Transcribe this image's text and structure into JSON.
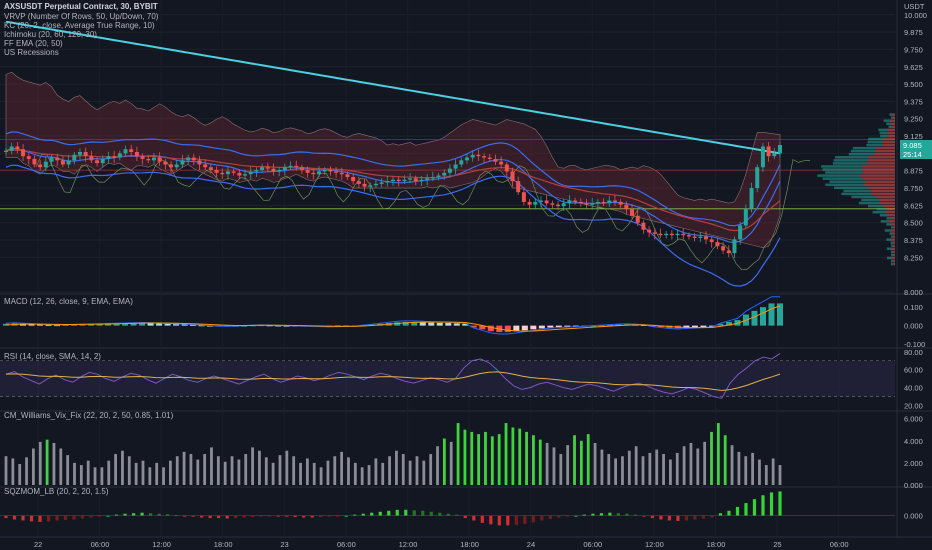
{
  "chart_title": "AXSUSDT Perpetual Contract, 30, BYBIT",
  "currency": "USDT",
  "indicators_main": [
    "VRVP (Number Of Rows, 50, Up/Down, 70)",
    "KC (20, 2, close, Average True Range, 10)",
    "Ichimoku (20, 60, 120, 30)",
    "FF EMA (20, 50)",
    "US Recessions"
  ],
  "price_badges": {
    "last": "9.085",
    "countdown": "25:14"
  },
  "macd_label": "MACD (12, 26, close, 9, EMA, EMA)",
  "rsi_label": "RSI (14, close, SMA, 14, 2)",
  "vix_label": "CM_Williams_Vix_Fix (22, 20, 2, 50, 0.85, 1.01)",
  "sqz_label": "SQZMOM_LB (20, 2, 20, 1.5)",
  "time_labels": [
    "22",
    "06:00",
    "12:00",
    "18:00",
    "23",
    "06:00",
    "12:00",
    "18:00",
    "24",
    "06:00",
    "12:00",
    "18:00",
    "25",
    "06:00"
  ],
  "chart_data": [
    {
      "type": "candlestick",
      "title": "AXSUSDT Perpetual Contract, 30, BYBIT",
      "y_ticks": [
        10.0,
        9.875,
        9.75,
        9.625,
        9.5,
        9.375,
        9.25,
        9.125,
        9.0,
        8.875,
        8.75,
        8.625,
        8.5,
        8.375,
        8.25,
        8.0
      ],
      "y_tick_labels": [
        "10.000",
        "9.875",
        "9.750",
        "9.625",
        "9.500",
        "9.375",
        "9.250",
        "9.125",
        "9.000",
        "8.875",
        "8.750",
        "8.625",
        "8.500",
        "8.375",
        "8.250",
        "8.000"
      ],
      "ylim": [
        8.0,
        10.02
      ],
      "close_series": [
        9.02,
        9.05,
        9.03,
        8.98,
        8.96,
        8.92,
        8.9,
        8.94,
        8.97,
        8.95,
        8.92,
        8.95,
        8.99,
        9.01,
        8.98,
        8.95,
        8.93,
        8.96,
        8.98,
        8.97,
        9.0,
        9.03,
        9.01,
        8.98,
        8.96,
        8.95,
        8.97,
        8.94,
        8.92,
        8.9,
        8.92,
        8.95,
        8.97,
        8.95,
        8.92,
        8.9,
        8.88,
        8.86,
        8.85,
        8.87,
        8.86,
        8.84,
        8.85,
        8.87,
        8.88,
        8.9,
        8.89,
        8.87,
        8.88,
        8.9,
        8.91,
        8.9,
        8.88,
        8.86,
        8.85,
        8.87,
        8.88,
        8.87,
        8.86,
        8.85,
        8.83,
        8.8,
        8.78,
        8.76,
        8.77,
        8.78,
        8.79,
        8.8,
        8.81,
        8.8,
        8.81,
        8.82,
        8.8,
        8.81,
        8.82,
        8.83,
        8.84,
        8.86,
        8.89,
        8.92,
        8.95,
        8.97,
        8.99,
        8.98,
        8.97,
        8.96,
        8.94,
        8.92,
        8.87,
        8.8,
        8.72,
        8.65,
        8.63,
        8.65,
        8.66,
        8.64,
        8.63,
        8.62,
        8.64,
        8.66,
        8.65,
        8.64,
        8.63,
        8.64,
        8.65,
        8.64,
        8.66,
        8.65,
        8.63,
        8.6,
        8.55,
        8.5,
        8.45,
        8.43,
        8.42,
        8.41,
        8.42,
        8.41,
        8.42,
        8.41,
        8.4,
        8.39,
        8.4,
        8.38,
        8.36,
        8.33,
        8.3,
        8.28,
        8.38,
        8.48,
        8.6,
        8.75,
        8.9,
        9.05,
        8.98,
        9.0,
        9.06
      ]
    },
    {
      "type": "bar",
      "title": "MACD (12, 26, close, 9, EMA, EMA)",
      "y_tick_labels": [
        "0.100",
        "0.000",
        "-0.100"
      ],
      "ylim": [
        -0.11,
        0.16
      ],
      "values": [
        0.01,
        0.012,
        0.01,
        0.008,
        0.006,
        0.004,
        0.003,
        0.004,
        0.005,
        0.006,
        0.007,
        0.008,
        0.009,
        0.01,
        0.011,
        0.012,
        0.013,
        0.012,
        0.011,
        0.01,
        0.008,
        0.006,
        0.004,
        0.002,
        0.0,
        -0.002,
        -0.003,
        -0.002,
        0.0,
        0.002,
        0.003,
        0.002,
        0.001,
        0.0,
        -0.001,
        -0.002,
        -0.003,
        -0.004,
        -0.005,
        -0.004,
        -0.003,
        -0.002,
        0.002,
        0.006,
        0.01,
        0.014,
        0.018,
        0.02,
        0.02,
        0.018,
        0.016,
        0.015,
        0.014,
        0.012,
        0.01,
        -0.01,
        -0.02,
        -0.03,
        -0.035,
        -0.035,
        -0.03,
        -0.025,
        -0.02,
        -0.015,
        -0.01,
        -0.008,
        -0.006,
        -0.004,
        -0.002,
        0.0,
        0.002,
        0.004,
        0.006,
        0.008,
        0.006,
        0.004,
        -0.004,
        -0.008,
        -0.012,
        -0.014,
        -0.012,
        -0.01,
        -0.008,
        -0.006,
        0.01,
        0.02,
        0.03,
        0.06,
        0.08,
        0.1,
        0.12,
        0.12
      ]
    },
    {
      "type": "line",
      "title": "RSI (14, close, SMA, 14, 2)",
      "y_tick_labels": [
        "80.00",
        "60.00",
        "40.00",
        "20.00"
      ],
      "ylim": [
        15,
        82
      ],
      "values": [
        55,
        58,
        52,
        48,
        44,
        50,
        54,
        49,
        46,
        52,
        57,
        55,
        50,
        47,
        52,
        56,
        54,
        49,
        45,
        50,
        55,
        52,
        48,
        46,
        50,
        53,
        50,
        47,
        44,
        48,
        52,
        55,
        50,
        46,
        49,
        53,
        51,
        48,
        50,
        54,
        57,
        55,
        52,
        49,
        53,
        56,
        54,
        50,
        47,
        45,
        48,
        51,
        49,
        46,
        50,
        62,
        70,
        72,
        68,
        60,
        50,
        42,
        38,
        40,
        44,
        46,
        43,
        40,
        38,
        41,
        44,
        42,
        39,
        36,
        40,
        43,
        45,
        42,
        38,
        35,
        33,
        36,
        40,
        38,
        34,
        30,
        28,
        45,
        55,
        62,
        70,
        74,
        72,
        78
      ]
    },
    {
      "type": "bar",
      "title": "CM_Williams_Vix_Fix (22, 20, 2, 50, 0.85, 1.01)",
      "y_tick_labels": [
        "6.000",
        "4.000",
        "2.000",
        "0.000"
      ],
      "ylim": [
        0,
        6.6
      ],
      "values": [
        2.6,
        2.4,
        1.9,
        2.5,
        3.3,
        3.9,
        4.1,
        3.8,
        3.3,
        2.7,
        2.0,
        1.8,
        2.2,
        1.6,
        1.6,
        2.2,
        2.8,
        3.1,
        2.6,
        2.0,
        2.2,
        1.6,
        2.0,
        1.6,
        2.2,
        2.6,
        3.0,
        2.8,
        2.3,
        2.8,
        3.4,
        2.6,
        2.1,
        2.6,
        2.3,
        2.8,
        3.4,
        3.1,
        2.5,
        2.0,
        2.7,
        3.1,
        2.6,
        2.0,
        2.4,
        2.0,
        1.6,
        2.2,
        2.6,
        3.0,
        2.5,
        2.0,
        1.6,
        1.8,
        2.4,
        2.0,
        2.6,
        3.1,
        2.8,
        2.2,
        2.6,
        2.2,
        2.8,
        3.5,
        4.2,
        3.9,
        5.6,
        5.0,
        4.8,
        4.6,
        4.8,
        4.4,
        4.6,
        5.6,
        5.2,
        5.1,
        4.8,
        4.5,
        4.1,
        3.8,
        3.4,
        2.8,
        3.6,
        4.5,
        4.0,
        4.6,
        3.8,
        3.2,
        2.8,
        2.4,
        2.6,
        3.1,
        3.5,
        2.6,
        2.9,
        3.2,
        2.8,
        2.3,
        2.9,
        3.5,
        3.8,
        3.3,
        3.9,
        4.8,
        5.6,
        4.5,
        3.6,
        3.0,
        2.6,
        2.9,
        2.3,
        1.8,
        2.4,
        1.8
      ]
    },
    {
      "type": "bar",
      "title": "SQZMOM_LB (20, 2, 20, 1.5)",
      "y_tick_labels": [
        "0.000"
      ],
      "ylim": [
        -0.4,
        0.55
      ],
      "values": [
        -0.05,
        -0.08,
        -0.1,
        -0.12,
        -0.13,
        -0.12,
        -0.1,
        -0.09,
        -0.08,
        -0.06,
        -0.04,
        -0.02,
        0.0,
        0.02,
        0.04,
        0.05,
        0.06,
        0.05,
        0.04,
        0.03,
        0.01,
        -0.01,
        -0.02,
        -0.04,
        -0.05,
        -0.05,
        -0.06,
        -0.05,
        -0.04,
        -0.03,
        -0.02,
        -0.01,
        -0.01,
        -0.02,
        -0.03,
        -0.04,
        -0.04,
        -0.03,
        -0.02,
        -0.01,
        0.0,
        0.02,
        0.04,
        0.06,
        0.08,
        0.1,
        0.12,
        0.12,
        0.11,
        0.1,
        0.08,
        0.06,
        0.04,
        0.02,
        -0.05,
        -0.1,
        -0.15,
        -0.18,
        -0.2,
        -0.2,
        -0.19,
        -0.17,
        -0.14,
        -0.1,
        -0.07,
        -0.04,
        -0.02,
        0.0,
        0.02,
        0.04,
        0.05,
        0.06,
        0.05,
        0.04,
        0.02,
        -0.02,
        -0.05,
        -0.08,
        -0.1,
        -0.11,
        -0.1,
        -0.08,
        -0.06,
        -0.04,
        0.05,
        0.1,
        0.18,
        0.26,
        0.34,
        0.42,
        0.48,
        0.5
      ]
    }
  ]
}
